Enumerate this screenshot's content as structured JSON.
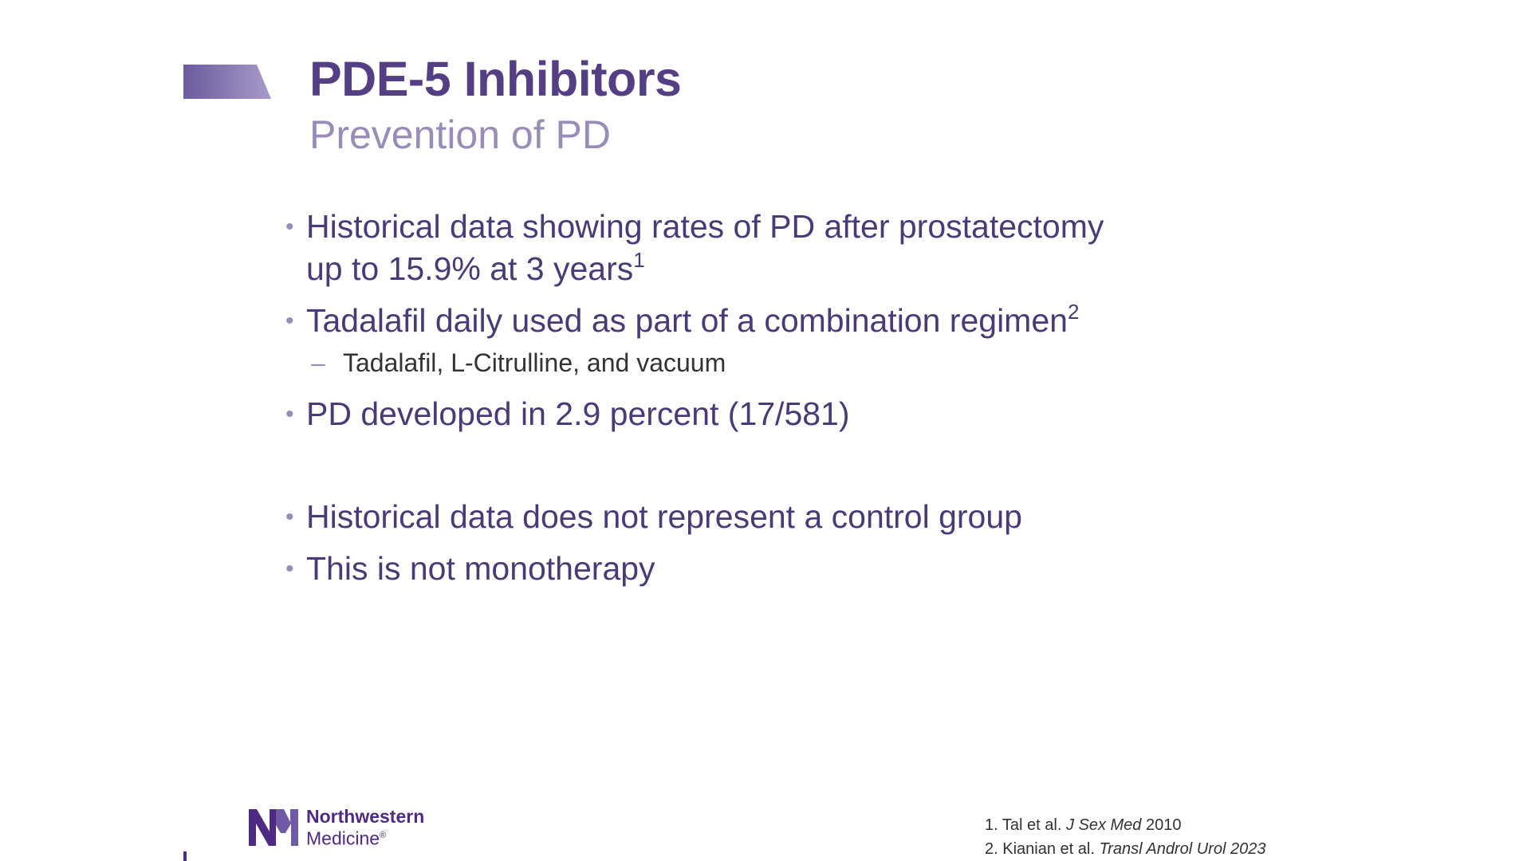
{
  "colors": {
    "title": "#553f84",
    "subtitle": "#9a8cb8",
    "accent_gradient_start": "#6c5a9e",
    "accent_gradient_end": "#a89bc9",
    "brand_purple": "#4e2a84"
  },
  "slide": {
    "title": "PDE-5 Inhibitors",
    "subtitle": "Prevention of PD"
  },
  "bullets": [
    {
      "line1": "Historical data showing rates of PD after prostatectomy",
      "line2": "up to 15.9% at 3 years",
      "sup": "1"
    },
    {
      "text": "Tadalafil daily used as part of a combination regimen",
      "sup": "2",
      "sub": "Tadalafil, L-Citrulline, and vacuum"
    },
    {
      "text": "PD developed in 2.9 percent (17/581)"
    },
    {
      "text": "Historical data does not represent a control group"
    },
    {
      "text": "This is not monotherapy"
    }
  ],
  "logo": {
    "line1": "Northwestern",
    "line2": "Medicine",
    "reg": "®"
  },
  "references": [
    {
      "num": "1.",
      "authors": "Tal et al.",
      "journal": "J Sex Med",
      "year": "2010"
    },
    {
      "num": "2.",
      "authors": "Kianian et al.",
      "journal": "Transl Androl Urol 2023",
      "year": ""
    }
  ]
}
